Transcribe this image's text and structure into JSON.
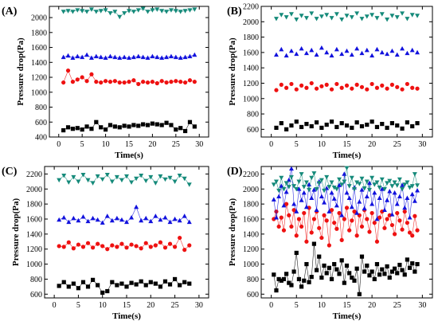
{
  "chart_data": [
    {
      "type": "scatter",
      "panel_label": "(A)",
      "xlabel": "Time(s)",
      "ylabel": "Pressure drop(Pa)",
      "xlim": [
        -2,
        32
      ],
      "ylim": [
        400,
        2150
      ],
      "xticks": [
        0,
        5,
        10,
        15,
        20,
        25,
        30
      ],
      "yticks": [
        400,
        600,
        800,
        1000,
        1200,
        1400,
        1600,
        1800,
        2000
      ],
      "x": [
        1,
        2,
        3,
        4,
        5,
        6,
        7,
        8,
        9,
        10,
        11,
        12,
        13,
        14,
        15,
        16,
        17,
        18,
        19,
        20,
        21,
        22,
        23,
        24,
        25,
        26,
        27,
        28,
        29
      ],
      "series": [
        {
          "marker": "square",
          "connected": true,
          "color": "#000000",
          "values": [
            490,
            530,
            510,
            520,
            500,
            540,
            510,
            600,
            530,
            500,
            560,
            540,
            530,
            550,
            540,
            560,
            550,
            570,
            560,
            580,
            570,
            560,
            590,
            560,
            500,
            520,
            480,
            600,
            540
          ]
        },
        {
          "marker": "circle",
          "connected": true,
          "color": "#ee1111",
          "values": [
            1130,
            1290,
            1140,
            1170,
            1200,
            1150,
            1240,
            1140,
            1130,
            1150,
            1140,
            1150,
            1130,
            1130,
            1140,
            1160,
            1110,
            1140,
            1130,
            1140,
            1120,
            1150,
            1130,
            1140,
            1150,
            1140,
            1130,
            1160,
            1140
          ]
        },
        {
          "marker": "triangle-up",
          "connected": true,
          "color": "#1111dd",
          "values": [
            1470,
            1490,
            1460,
            1480,
            1470,
            1500,
            1460,
            1480,
            1470,
            1460,
            1480,
            1470,
            1460,
            1470,
            1460,
            1470,
            1480,
            1470,
            1460,
            1480,
            1470,
            1460,
            1470,
            1480,
            1470,
            1460,
            1470,
            1480,
            1500
          ]
        },
        {
          "marker": "triangle-down",
          "connected": true,
          "color": "#158a7a",
          "values": [
            2080,
            2090,
            2080,
            2100,
            2090,
            2080,
            2110,
            2080,
            2090,
            2100,
            2060,
            2080,
            2010,
            2060,
            2090,
            2080,
            2100,
            2120,
            2080,
            2100,
            2110,
            2090,
            2080,
            2100,
            2090,
            2080,
            2090,
            2100,
            2110
          ]
        }
      ]
    },
    {
      "type": "scatter",
      "panel_label": "(B)",
      "xlabel": "Time(s)",
      "ylabel": "Pressure drop(Pa)",
      "xlim": [
        -2,
        32
      ],
      "ylim": [
        500,
        2200
      ],
      "xticks": [
        0,
        5,
        10,
        15,
        20,
        25,
        30
      ],
      "yticks": [
        600,
        800,
        1000,
        1200,
        1400,
        1600,
        1800,
        2000,
        2200
      ],
      "x": [
        1,
        2,
        3,
        4,
        5,
        6,
        7,
        8,
        9,
        10,
        11,
        12,
        13,
        14,
        15,
        16,
        17,
        18,
        19,
        20,
        21,
        22,
        23,
        24,
        25,
        26,
        27,
        28,
        29
      ],
      "series": [
        {
          "marker": "square",
          "connected": false,
          "color": "#000000",
          "values": [
            620,
            680,
            600,
            650,
            700,
            630,
            670,
            640,
            690,
            620,
            660,
            700,
            630,
            680,
            650,
            620,
            690,
            640,
            660,
            700,
            630,
            670,
            620,
            680,
            650,
            610,
            690,
            640,
            680
          ]
        },
        {
          "marker": "circle",
          "connected": false,
          "color": "#ee1111",
          "values": [
            1110,
            1180,
            1140,
            1190,
            1120,
            1170,
            1140,
            1200,
            1130,
            1160,
            1180,
            1120,
            1190,
            1140,
            1170,
            1130,
            1180,
            1150,
            1120,
            1190,
            1140,
            1170,
            1130,
            1180,
            1150,
            1120,
            1190,
            1140,
            1130
          ]
        },
        {
          "marker": "triangle-up",
          "connected": false,
          "color": "#1111dd",
          "values": [
            1570,
            1640,
            1560,
            1620,
            1580,
            1650,
            1590,
            1630,
            1570,
            1660,
            1600,
            1560,
            1640,
            1580,
            1620,
            1570,
            1650,
            1590,
            1630,
            1560,
            1640,
            1600,
            1580,
            1620,
            1570,
            1650,
            1590,
            1630,
            1600
          ]
        },
        {
          "marker": "triangle-down",
          "connected": false,
          "color": "#158a7a",
          "values": [
            2040,
            2090,
            2060,
            2100,
            2030,
            2080,
            2050,
            2110,
            2040,
            2070,
            2090,
            2050,
            2100,
            2030,
            2080,
            2060,
            2110,
            2040,
            2070,
            2090,
            2050,
            2100,
            2030,
            2080,
            2060,
            2110,
            2040,
            2090,
            2080
          ]
        }
      ]
    },
    {
      "type": "scatter",
      "panel_label": "(C)",
      "xlabel": "Time(s)",
      "ylabel": "Pressure drop(Pa)",
      "xlim": [
        -2,
        32
      ],
      "ylim": [
        550,
        2300
      ],
      "xticks": [
        0,
        5,
        10,
        15,
        20,
        25,
        30
      ],
      "yticks": [
        600,
        800,
        1000,
        1200,
        1400,
        1600,
        1800,
        2000,
        2200
      ],
      "x": [
        1,
        2,
        3,
        4,
        5,
        6,
        7,
        8,
        9,
        10,
        11,
        12,
        13,
        14,
        15,
        16,
        17,
        18,
        19,
        20,
        21,
        22,
        23,
        24,
        25,
        26,
        27,
        28
      ],
      "series": [
        {
          "marker": "square",
          "connected": true,
          "color": "#000000",
          "values": [
            710,
            760,
            700,
            740,
            680,
            760,
            700,
            790,
            720,
            620,
            640,
            760,
            720,
            740,
            700,
            750,
            730,
            770,
            720,
            760,
            740,
            700,
            770,
            730,
            800,
            720,
            760,
            740
          ]
        },
        {
          "marker": "circle",
          "connected": true,
          "color": "#ee1111",
          "values": [
            1240,
            1230,
            1290,
            1210,
            1260,
            1230,
            1280,
            1220,
            1270,
            1240,
            1200,
            1250,
            1230,
            1270,
            1220,
            1260,
            1240,
            1210,
            1280,
            1230,
            1250,
            1290,
            1220,
            1270,
            1230,
            1350,
            1190,
            1250
          ]
        },
        {
          "marker": "triangle-up",
          "connected": true,
          "color": "#1111dd",
          "values": [
            1590,
            1620,
            1560,
            1610,
            1580,
            1630,
            1570,
            1610,
            1590,
            1550,
            1640,
            1580,
            1610,
            1590,
            1560,
            1620,
            1760,
            1580,
            1610,
            1570,
            1640,
            1590,
            1620,
            1560,
            1600,
            1580,
            1640,
            1560
          ]
        },
        {
          "marker": "triangle-down",
          "connected": true,
          "color": "#158a7a",
          "values": [
            2120,
            2180,
            2090,
            2160,
            2100,
            2190,
            2120,
            2080,
            2170,
            2130,
            2190,
            2100,
            2160,
            2120,
            2170,
            2090,
            2140,
            2180,
            2110,
            2160,
            2080,
            2170,
            2130,
            2150,
            2100,
            2180,
            2140,
            2060
          ]
        }
      ]
    },
    {
      "type": "scatter",
      "panel_label": "(D)",
      "xlabel": "Time(s)",
      "ylabel": "Pressure drop(Pa)",
      "xlim": [
        -2,
        32
      ],
      "ylim": [
        550,
        2300
      ],
      "xticks": [
        0,
        5,
        10,
        15,
        20,
        25,
        30
      ],
      "yticks": [
        600,
        800,
        1000,
        1200,
        1400,
        1600,
        1800,
        2000,
        2200
      ],
      "x": [
        0.5,
        1,
        1.5,
        2,
        2.5,
        3,
        3.5,
        4,
        4.5,
        5,
        5.5,
        6,
        6.5,
        7,
        7.5,
        8,
        8.5,
        9,
        9.5,
        10,
        10.5,
        11,
        11.5,
        12,
        12.5,
        13,
        13.5,
        14,
        14.5,
        15,
        15.5,
        16,
        16.5,
        17,
        17.5,
        18,
        18.5,
        19,
        19.5,
        20,
        20.5,
        21,
        21.5,
        22,
        22.5,
        23,
        23.5,
        24,
        24.5,
        25,
        25.5,
        26,
        26.5,
        27,
        27.5,
        28,
        28.5,
        29
      ],
      "series": [
        {
          "marker": "square",
          "connected": true,
          "color": "#000000",
          "values": [
            860,
            650,
            800,
            780,
            800,
            870,
            750,
            720,
            900,
            1150,
            800,
            700,
            780,
            1000,
            760,
            830,
            1270,
            920,
            1100,
            820,
            980,
            880,
            950,
            800,
            1000,
            930,
            870,
            1050,
            750,
            980,
            880,
            820,
            780,
            940,
            600,
            1100,
            900,
            980,
            850,
            900,
            800,
            1000,
            860,
            930,
            870,
            970,
            820,
            900,
            940,
            880,
            990,
            920,
            860,
            1060,
            950,
            1010,
            900,
            1000
          ]
        },
        {
          "marker": "circle",
          "connected": true,
          "color": "#ee1111",
          "values": [
            1600,
            1700,
            1500,
            1620,
            1450,
            1800,
            1650,
            1500,
            1720,
            1380,
            1600,
            1500,
            1680,
            1300,
            1750,
            1420,
            1600,
            1700,
            1480,
            1350,
            1650,
            1580,
            1250,
            1720,
            1550,
            1470,
            1680,
            1320,
            1600,
            1750,
            1450,
            1580,
            1700,
            1380,
            1650,
            1500,
            1720,
            1600,
            1430,
            1680,
            1550,
            1300,
            1620,
            1700,
            1480,
            1600,
            1650,
            1520,
            1400,
            1680,
            1580,
            1460,
            1700,
            1550,
            1420,
            1380,
            1640,
            1450
          ]
        },
        {
          "marker": "triangle-up",
          "connected": true,
          "color": "#1111dd",
          "values": [
            1860,
            1620,
            1900,
            2040,
            1780,
            1960,
            2120,
            2270,
            1800,
            1700,
            2000,
            1850,
            1950,
            1760,
            2060,
            1880,
            1990,
            1720,
            2100,
            1900,
            1820,
            2010,
            1700,
            1950,
            1870,
            1780,
            2050,
            1650,
            2200,
            1950,
            1880,
            1760,
            2020,
            1680,
            1830,
            1990,
            1740,
            1900,
            2080,
            1800,
            1950,
            1600,
            1880,
            2000,
            1720,
            1850,
            1970,
            1660,
            1950,
            1800,
            1900,
            2050,
            1750,
            1880,
            1620,
            1930,
            1840,
            1980
          ]
        },
        {
          "marker": "triangle-down",
          "connected": true,
          "color": "#158a7a",
          "values": [
            2060,
            2100,
            1980,
            2150,
            2000,
            2080,
            2030,
            2160,
            2040,
            2000,
            2100,
            2200,
            2030,
            2090,
            1990,
            2150,
            2210,
            2000,
            2080,
            2120,
            1980,
            2160,
            2030,
            2090,
            2020,
            2000,
            2130,
            2060,
            2100,
            2280,
            2040,
            2150,
            2000,
            2090,
            2070,
            2140,
            2010,
            2100,
            1990,
            2150,
            2060,
            2090,
            2020,
            2130,
            2000,
            2080,
            2110,
            2040,
            2090,
            2050,
            2130,
            2000,
            2060,
            2090,
            2020,
            2040,
            2200,
            2050
          ]
        }
      ]
    }
  ]
}
